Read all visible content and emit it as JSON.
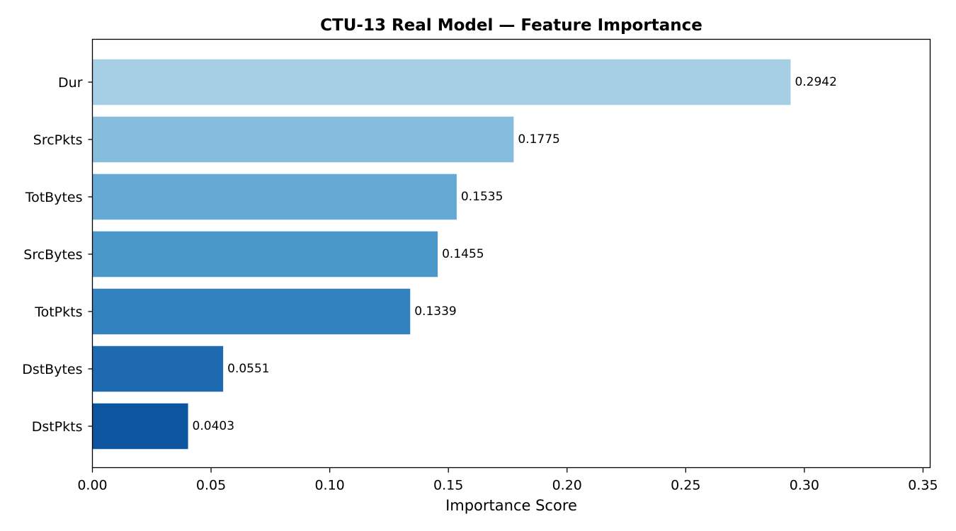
{
  "chart_data": {
    "type": "bar",
    "orientation": "horizontal",
    "title": "CTU-13 Real Model — Feature Importance",
    "xlabel": "Importance Score",
    "ylabel": "",
    "categories": [
      "Dur",
      "SrcPkts",
      "TotBytes",
      "SrcBytes",
      "TotPkts",
      "DstBytes",
      "DstPkts"
    ],
    "values": [
      0.2942,
      0.1775,
      0.1535,
      0.1455,
      0.1339,
      0.0551,
      0.0403
    ],
    "data_labels": [
      "0.2942",
      "0.1775",
      "0.1535",
      "0.1455",
      "0.1339",
      "0.0551",
      "0.0403"
    ],
    "colors": [
      "#a6cee4",
      "#86bcdc",
      "#65aad4",
      "#4a98c9",
      "#3282be",
      "#1e6ab0",
      "#0e559f"
    ],
    "xlim": [
      0,
      0.353
    ],
    "xticks": [
      0.0,
      0.05,
      0.1,
      0.15,
      0.2,
      0.25,
      0.3,
      0.35
    ],
    "xtick_labels": [
      "0.00",
      "0.05",
      "0.10",
      "0.15",
      "0.20",
      "0.25",
      "0.30",
      "0.35"
    ],
    "grid": false,
    "legend": "none"
  }
}
